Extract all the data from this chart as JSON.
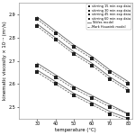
{
  "title": "",
  "xlabel": "temperature (°C)",
  "ylabel": "kinematic viscosity × 10⁻⁴ (m²/s)",
  "xlim": [
    20,
    82
  ],
  "ylim": [
    2.45,
    2.95
  ],
  "yticks": [
    2.5,
    2.6,
    2.7,
    2.8,
    2.9
  ],
  "xticks": [
    30,
    40,
    50,
    60,
    70,
    80
  ],
  "temperatures": [
    30,
    40,
    50,
    60,
    70,
    80
  ],
  "series": [
    {
      "label": "stirring 15 min exp data",
      "values": [
        2.88,
        2.82,
        2.76,
        2.71,
        2.65,
        2.6
      ]
    },
    {
      "label": "stirring 30 min exp data",
      "values": [
        2.85,
        2.79,
        2.73,
        2.68,
        2.62,
        2.57
      ]
    },
    {
      "label": "stirring 45 min exp data",
      "values": [
        2.68,
        2.63,
        2.58,
        2.54,
        2.5,
        2.47
      ]
    },
    {
      "label": "stirring 60 min exp data",
      "values": [
        2.65,
        2.6,
        2.55,
        2.51,
        2.47,
        2.45
      ]
    }
  ],
  "fit_solid_label": "Tsilifes model",
  "fit_dashed_label": "Mark Houwink model",
  "fit_solid": [
    [
      2.89,
      2.83,
      2.77,
      2.72,
      2.66,
      2.61
    ],
    [
      2.86,
      2.8,
      2.74,
      2.69,
      2.63,
      2.58
    ],
    [
      2.69,
      2.64,
      2.59,
      2.55,
      2.51,
      2.47
    ],
    [
      2.66,
      2.61,
      2.56,
      2.52,
      2.48,
      2.45
    ]
  ],
  "fit_dashed": [
    [
      2.88,
      2.82,
      2.76,
      2.71,
      2.65,
      2.6
    ],
    [
      2.85,
      2.79,
      2.73,
      2.68,
      2.62,
      2.57
    ],
    [
      2.68,
      2.63,
      2.58,
      2.54,
      2.5,
      2.47
    ],
    [
      2.65,
      2.6,
      2.55,
      2.51,
      2.47,
      2.44
    ]
  ],
  "background_color": "#ffffff",
  "marker_color": "#222222",
  "line_color": "#666666",
  "marker_size": 2.5,
  "line_width": 0.6,
  "fontsize_axis": 3.8,
  "fontsize_tick": 3.5,
  "fontsize_legend": 2.5
}
